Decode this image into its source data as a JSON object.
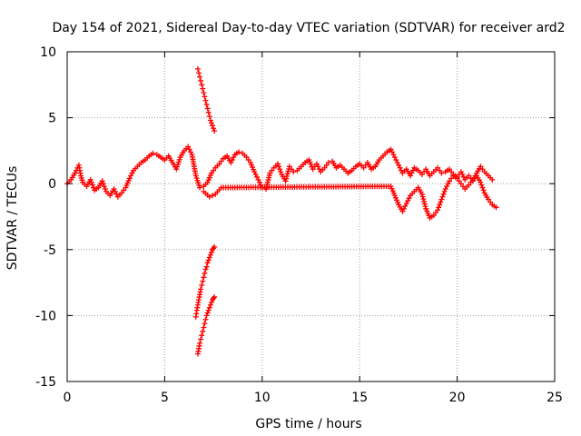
{
  "chart_data": {
    "type": "scatter",
    "title": "Day 154 of 2021, Sidereal Day-to-day VTEC variation (SDTVAR) for receiver ard2",
    "xlabel": "GPS time / hours",
    "ylabel": "SDTVAR / TECUs",
    "xlim": [
      0,
      25
    ],
    "ylim": [
      -15,
      10
    ],
    "xticks": [
      0,
      5,
      10,
      15,
      20,
      25
    ],
    "xtick_labels": [
      "0",
      "5",
      "10",
      "15",
      "20",
      "25"
    ],
    "yticks": [
      -15,
      -10,
      -5,
      0,
      5,
      10
    ],
    "ytick_labels": [
      "-15",
      "-10",
      "-5",
      "0",
      "5",
      "10"
    ],
    "grid": true,
    "marker": "+",
    "series": [
      {
        "name": "main-band",
        "color": "#ff0000",
        "x": [
          0.0,
          0.2,
          0.4,
          0.6,
          0.7,
          0.8,
          1.0,
          1.2,
          1.4,
          1.6,
          1.8,
          2.0,
          2.2,
          2.4,
          2.6,
          2.8,
          3.0,
          3.2,
          3.4,
          3.6,
          3.8,
          4.0,
          4.2,
          4.4,
          4.6,
          4.8,
          5.0,
          5.2,
          5.4,
          5.6,
          5.8,
          6.0,
          6.2,
          6.4,
          6.6,
          6.8,
          7.0,
          7.2,
          7.4,
          7.6,
          7.8,
          8.0,
          8.2,
          8.4,
          8.6,
          8.8,
          9.0,
          9.2,
          9.4,
          9.6,
          9.8,
          10.0,
          10.2,
          10.4,
          10.6,
          10.8,
          11.0,
          11.2,
          11.4,
          11.6,
          11.8,
          12.0,
          12.2,
          12.4,
          12.6,
          12.8,
          13.0,
          13.2,
          13.4,
          13.6,
          13.8,
          14.0,
          14.2,
          14.4,
          14.6,
          14.8,
          15.0,
          15.2,
          15.4,
          15.6,
          15.8,
          16.0,
          16.2,
          16.4,
          16.6,
          16.8,
          17.0,
          17.2,
          17.4,
          17.6,
          17.8,
          18.0,
          18.2,
          18.4,
          18.6,
          18.8,
          19.0,
          19.2,
          19.4,
          19.6,
          19.8,
          20.0,
          20.2,
          20.4,
          20.6,
          20.8,
          21.0,
          21.2,
          21.4,
          21.6,
          21.8
        ],
        "y": [
          0.0,
          0.3,
          0.8,
          1.4,
          0.6,
          0.1,
          -0.2,
          0.3,
          -0.5,
          -0.3,
          0.2,
          -0.6,
          -0.9,
          -0.4,
          -1.0,
          -0.7,
          -0.3,
          0.4,
          1.0,
          1.3,
          1.6,
          1.8,
          2.1,
          2.3,
          2.2,
          2.0,
          1.8,
          2.1,
          1.6,
          1.1,
          2.0,
          2.5,
          2.8,
          2.2,
          0.6,
          -0.3,
          -0.2,
          0.1,
          0.8,
          1.2,
          1.5,
          1.9,
          2.1,
          1.6,
          2.2,
          2.4,
          2.3,
          2.0,
          1.6,
          0.9,
          0.3,
          -0.3,
          -0.4,
          0.8,
          1.2,
          1.5,
          0.7,
          0.2,
          1.3,
          0.9,
          1.0,
          1.3,
          1.6,
          1.8,
          1.1,
          1.5,
          0.9,
          1.2,
          1.6,
          1.7,
          1.2,
          1.4,
          1.1,
          0.8,
          1.0,
          1.3,
          1.5,
          1.2,
          1.6,
          1.1,
          1.3,
          1.8,
          2.1,
          2.4,
          2.6,
          2.0,
          1.4,
          0.8,
          1.1,
          0.6,
          1.2,
          1.0,
          0.7,
          1.1,
          0.6,
          0.9,
          1.2,
          0.8,
          0.9,
          1.1,
          0.7,
          0.5,
          0.9,
          0.3,
          0.6,
          0.2,
          0.8,
          1.3,
          0.9,
          0.6,
          0.3
        ]
      },
      {
        "name": "lower-branch",
        "color": "#ff0000",
        "x": [
          7.0,
          7.3,
          7.6,
          7.9,
          16.6,
          16.8,
          17.0,
          17.2,
          17.4,
          17.6,
          17.8,
          18.0,
          18.2,
          18.4,
          18.6,
          18.8,
          19.0,
          19.2,
          19.4,
          19.6,
          19.8,
          20.0,
          20.2,
          20.4,
          20.6,
          20.8,
          21.0,
          21.2,
          21.4,
          21.6,
          21.8,
          22.0
        ],
        "y": [
          -0.6,
          -1.0,
          -0.8,
          -0.3,
          -0.2,
          -0.9,
          -1.6,
          -2.1,
          -1.5,
          -0.9,
          -0.6,
          -0.3,
          -0.8,
          -1.9,
          -2.6,
          -2.4,
          -2.0,
          -1.2,
          -0.4,
          0.2,
          0.6,
          0.4,
          0.0,
          -0.4,
          -0.1,
          0.3,
          0.6,
          0.1,
          -0.7,
          -1.2,
          -1.6,
          -1.8
        ]
      },
      {
        "name": "upper-arc",
        "color": "#ff0000",
        "x": [
          6.7,
          6.75,
          6.8,
          6.85,
          6.9,
          6.95,
          7.0,
          7.05,
          7.1,
          7.15,
          7.2,
          7.25,
          7.3,
          7.35,
          7.4,
          7.45,
          7.5,
          7.55
        ],
        "y": [
          8.7,
          8.4,
          8.1,
          7.8,
          7.5,
          7.2,
          6.9,
          6.6,
          6.3,
          6.0,
          5.7,
          5.4,
          5.1,
          4.8,
          4.6,
          4.4,
          4.2,
          4.0
        ]
      },
      {
        "name": "lower-arc-a",
        "color": "#ff0000",
        "x": [
          6.6,
          6.65,
          6.7,
          6.75,
          6.8,
          6.85,
          6.9,
          6.95,
          7.0,
          7.05,
          7.1,
          7.15,
          7.2,
          7.25,
          7.3,
          7.35,
          7.4,
          7.45,
          7.5,
          7.55
        ],
        "y": [
          -10.1,
          -9.6,
          -9.2,
          -8.8,
          -8.4,
          -8.0,
          -7.7,
          -7.4,
          -7.1,
          -6.8,
          -6.5,
          -6.3,
          -6.0,
          -5.8,
          -5.6,
          -5.4,
          -5.2,
          -5.0,
          -4.9,
          -4.8
        ]
      },
      {
        "name": "lower-arc-b",
        "color": "#ff0000",
        "x": [
          6.7,
          6.75,
          6.8,
          6.85,
          6.9,
          6.95,
          7.0,
          7.05,
          7.1,
          7.15,
          7.2,
          7.25,
          7.3,
          7.35,
          7.4,
          7.45,
          7.5,
          7.55
        ],
        "y": [
          -12.9,
          -12.5,
          -12.1,
          -11.8,
          -11.5,
          -11.2,
          -10.9,
          -10.6,
          -10.3,
          -10.0,
          -9.8,
          -9.6,
          -9.4,
          -9.2,
          -9.0,
          -8.8,
          -8.7,
          -8.6
        ]
      }
    ]
  }
}
